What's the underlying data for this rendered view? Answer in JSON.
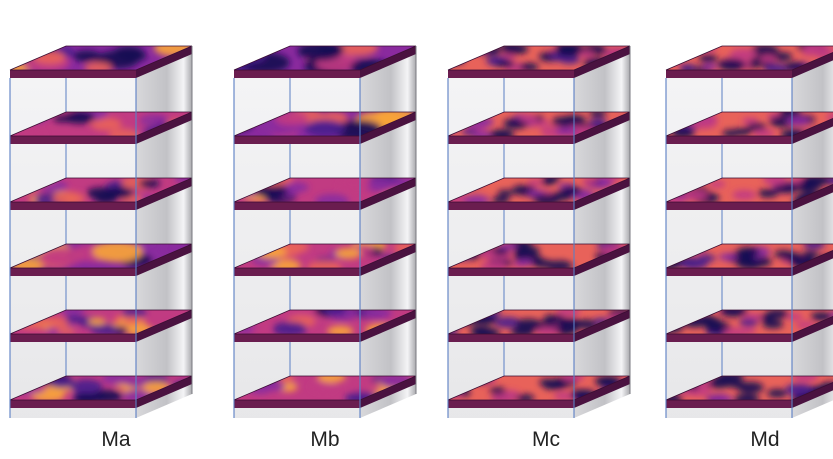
{
  "models": [
    {
      "label": "Ma",
      "slab_patterns": [
        "broad",
        "medium",
        "medium",
        "broad",
        "fine",
        "medium"
      ]
    },
    {
      "label": "Mb",
      "slab_patterns": [
        "broad",
        "broad",
        "medium",
        "medium",
        "medium",
        "medium"
      ]
    },
    {
      "label": "Mc",
      "slab_patterns": [
        "spotted",
        "spotted",
        "spotted",
        "spotted",
        "spotted",
        "spotted"
      ]
    },
    {
      "label": "Md",
      "slab_patterns": [
        "spotted",
        "spotted",
        "spotted",
        "spotted",
        "spotted",
        "spotted"
      ]
    }
  ],
  "colors": {
    "colormap": [
      "#150a52",
      "#4b1d8c",
      "#8a2a9e",
      "#c13b82",
      "#e8625a",
      "#f9a43a",
      "#fde35a"
    ],
    "wall": "#c9c9cc",
    "frame": "#5b7fc4",
    "slab_edge": "#6a1d4f"
  }
}
